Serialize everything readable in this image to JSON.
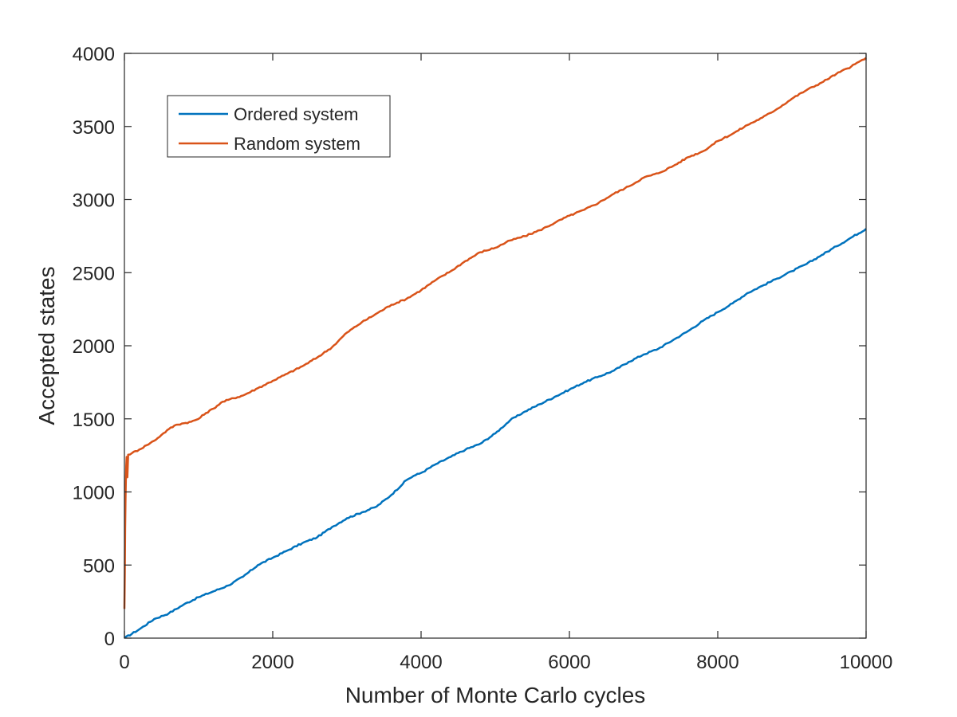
{
  "chart_data": {
    "type": "line",
    "title": "",
    "xlabel": "Number of Monte Carlo cycles",
    "ylabel": "Accepted states",
    "xlim": [
      0,
      10000
    ],
    "ylim": [
      0,
      4000
    ],
    "xticks": [
      0,
      2000,
      4000,
      6000,
      8000,
      10000
    ],
    "yticks": [
      0,
      500,
      1000,
      1500,
      2000,
      2500,
      3000,
      3500,
      4000
    ],
    "xtick_labels": [
      "0",
      "2000",
      "4000",
      "6000",
      "8000",
      "10000"
    ],
    "ytick_labels": [
      "0",
      "500",
      "1000",
      "1500",
      "2000",
      "2500",
      "3000",
      "3500",
      "4000"
    ],
    "grid": false,
    "legend_position": "top-left",
    "series": [
      {
        "name": "Ordered system",
        "color": "#0072BD",
        "x": [
          0,
          200,
          400,
          600,
          800,
          1000,
          1200,
          1400,
          1600,
          1800,
          2000,
          2200,
          2400,
          2600,
          2800,
          3000,
          3200,
          3400,
          3600,
          3800,
          3900,
          4000,
          4200,
          4400,
          4600,
          4800,
          5000,
          5200,
          5400,
          5600,
          5800,
          6000,
          6200,
          6400,
          6600,
          6800,
          7000,
          7200,
          7400,
          7600,
          7800,
          8000,
          8200,
          8400,
          8600,
          8800,
          9000,
          9200,
          9400,
          9600,
          9800,
          10000
        ],
        "y": [
          0,
          60,
          130,
          170,
          230,
          280,
          320,
          360,
          420,
          500,
          550,
          600,
          650,
          690,
          760,
          820,
          860,
          900,
          980,
          1080,
          1110,
          1130,
          1190,
          1240,
          1290,
          1330,
          1400,
          1490,
          1550,
          1600,
          1650,
          1700,
          1750,
          1790,
          1830,
          1890,
          1940,
          1980,
          2040,
          2100,
          2170,
          2230,
          2290,
          2360,
          2410,
          2460,
          2510,
          2560,
          2620,
          2680,
          2740,
          2800
        ]
      },
      {
        "name": "Random system",
        "color": "#D95319",
        "x": [
          0,
          5,
          10,
          15,
          20,
          25,
          30,
          40,
          50,
          100,
          200,
          300,
          400,
          500,
          600,
          700,
          800,
          900,
          1000,
          1100,
          1200,
          1300,
          1400,
          1600,
          1800,
          2000,
          2200,
          2400,
          2600,
          2800,
          3000,
          3200,
          3400,
          3600,
          3800,
          4000,
          4200,
          4400,
          4600,
          4800,
          5000,
          5200,
          5400,
          5600,
          5800,
          6000,
          6200,
          6400,
          6600,
          6800,
          7000,
          7200,
          7400,
          7600,
          7800,
          8000,
          8200,
          8400,
          8600,
          8800,
          9000,
          9200,
          9400,
          9600,
          9800,
          10000
        ],
        "y": [
          200,
          450,
          750,
          950,
          1100,
          1180,
          1240,
          1100,
          1255,
          1265,
          1290,
          1320,
          1350,
          1390,
          1430,
          1460,
          1470,
          1480,
          1500,
          1540,
          1570,
          1610,
          1630,
          1660,
          1710,
          1760,
          1810,
          1860,
          1920,
          1990,
          2090,
          2160,
          2220,
          2280,
          2320,
          2380,
          2450,
          2510,
          2580,
          2640,
          2670,
          2720,
          2750,
          2790,
          2840,
          2890,
          2930,
          2980,
          3040,
          3090,
          3150,
          3180,
          3230,
          3290,
          3330,
          3400,
          3450,
          3510,
          3560,
          3620,
          3690,
          3750,
          3800,
          3860,
          3910,
          3970
        ]
      }
    ]
  }
}
